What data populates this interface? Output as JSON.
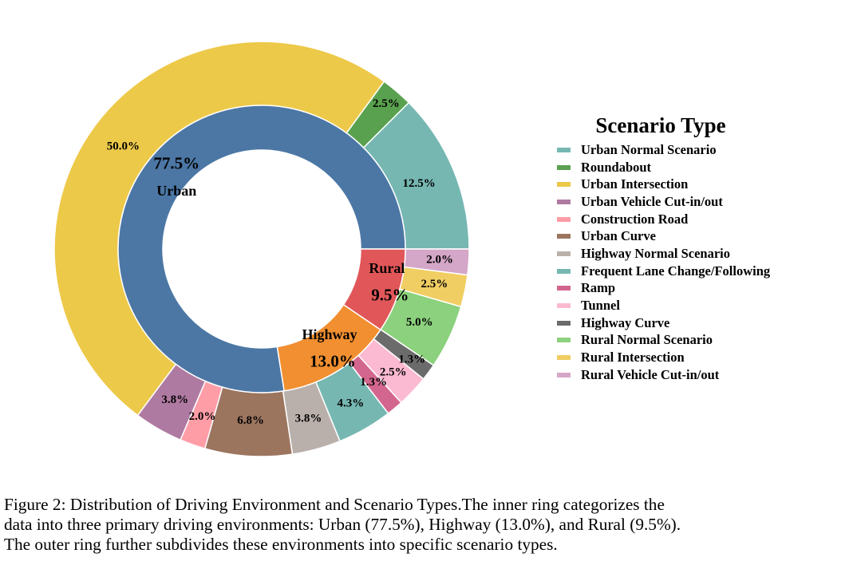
{
  "chart_data": {
    "type": "pie",
    "inner_ring": {
      "values": [
        77.5,
        13.0,
        9.5
      ],
      "labels": [
        "Urban",
        "Highway",
        "Rural"
      ],
      "value_labels": [
        "77.5%",
        "13.0%",
        "9.5%"
      ],
      "colors": [
        "#4c77a5",
        "#f18f31",
        "#e15759"
      ]
    },
    "outer_ring": {
      "categories": [
        "Urban Normal Scenario",
        "Roundabout",
        "Urban Intersection",
        "Urban Vehicle Cut-in/out",
        "Construction Road",
        "Urban Curve",
        "Highway Normal Scenario",
        "Frequent Lane Change/Following",
        "Ramp",
        "Tunnel",
        "Highway Curve",
        "Rural Normal Scenario",
        "Rural Intersection",
        "Rural Vehicle Cut-in/out"
      ],
      "values": [
        12.5,
        2.5,
        50.0,
        3.8,
        2.0,
        6.8,
        3.8,
        4.3,
        1.3,
        2.5,
        1.3,
        5.0,
        2.5,
        2.0
      ],
      "value_labels": [
        "12.5%",
        "2.5%",
        "50.0%",
        "3.8%",
        "2.0%",
        "6.8%",
        "3.8%",
        "4.3%",
        "1.3%",
        "2.5%",
        "1.3%",
        "5.0%",
        "2.5%",
        "2.0%"
      ],
      "colors": [
        "#76b7b2",
        "#59a14e",
        "#edc949",
        "#af7aa1",
        "#ff9da7",
        "#9c755f",
        "#bab0ab",
        "#76b7b2",
        "#d3668e",
        "#fbbad1",
        "#6b6b6b",
        "#8cd17d",
        "#f1ce63",
        "#d4a6c8"
      ]
    },
    "legend": {
      "title": "Scenario Type",
      "placement": "right",
      "entries": [
        "Urban Normal Scenario",
        "Roundabout",
        "Urban Intersection",
        "Urban Vehicle Cut-in/out",
        "Construction Road",
        "Urban Curve",
        "Highway Normal Scenario",
        "Frequent Lane Change/Following",
        "Ramp",
        "Tunnel",
        "Highway Curve",
        "Rural Normal Scenario",
        "Rural Intersection",
        "Rural Vehicle Cut-in/out"
      ]
    }
  },
  "caption": {
    "line1": "Figure 2: Distribution of Driving Environment and Scenario Types.The inner ring categorizes the",
    "line2": "data into three primary driving environments: Urban (77.5%), Highway (13.0%), and Rural (9.5%).",
    "line3": "The outer ring further subdivides these environments into specific scenario types."
  }
}
